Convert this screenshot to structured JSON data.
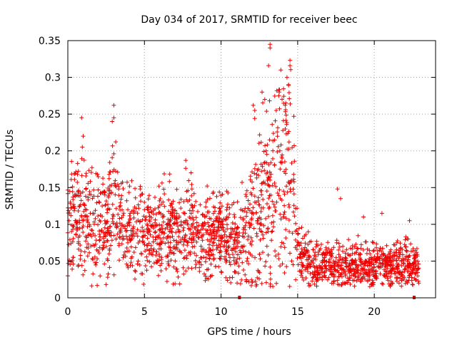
{
  "chart_data": {
    "type": "scatter",
    "title": "Day 034 of 2017, SRMTID for receiver beec",
    "xlabel": "GPS time / hours",
    "ylabel": "SRMTID / TECUs",
    "xlim": [
      0,
      24
    ],
    "ylim": [
      0,
      0.35
    ],
    "xticks": [
      0,
      5,
      10,
      15,
      20
    ],
    "yticks": [
      0,
      0.05,
      0.1,
      0.15,
      0.2,
      0.25,
      0.3,
      0.35
    ],
    "xtick_labels": [
      "0",
      "5",
      "10",
      "15",
      "20"
    ],
    "ytick_labels": [
      "0",
      "0.05",
      "0.1",
      "0.15",
      "0.2",
      "0.25",
      "0.3",
      "0.35"
    ],
    "grid": true,
    "marker": "+",
    "color": "#ee0000",
    "zero_markers_x": [
      11.2,
      22.6
    ],
    "series": [
      {
        "name": "SRMTID",
        "profile_hours": [
          0,
          0.5,
          1,
          1.5,
          2,
          2.5,
          3,
          3.5,
          4,
          5,
          6,
          7,
          8,
          9,
          10,
          11,
          11.5,
          12,
          12.5,
          13,
          13.5,
          14,
          14.5,
          14.8,
          15,
          15.5,
          16,
          17,
          18,
          19,
          20,
          21,
          22,
          22.9
        ],
        "profile_mean_tecu": [
          0.1,
          0.12,
          0.11,
          0.09,
          0.1,
          0.1,
          0.12,
          0.1,
          0.09,
          0.085,
          0.09,
          0.09,
          0.095,
          0.08,
          0.09,
          0.075,
          0.08,
          0.11,
          0.12,
          0.14,
          0.16,
          0.17,
          0.18,
          0.15,
          0.065,
          0.05,
          0.045,
          0.045,
          0.045,
          0.045,
          0.045,
          0.045,
          0.045,
          0.04
        ],
        "profile_spread_tecu": [
          0.035,
          0.045,
          0.04,
          0.035,
          0.035,
          0.035,
          0.045,
          0.035,
          0.03,
          0.03,
          0.03,
          0.03,
          0.03,
          0.03,
          0.03,
          0.025,
          0.035,
          0.055,
          0.06,
          0.07,
          0.07,
          0.07,
          0.07,
          0.05,
          0.02,
          0.015,
          0.015,
          0.015,
          0.015,
          0.015,
          0.015,
          0.015,
          0.015,
          0.012
        ],
        "sample_count": 2200,
        "extra_points": [
          [
            0.9,
            0.245
          ],
          [
            1.0,
            0.22
          ],
          [
            3.0,
            0.262
          ],
          [
            3.0,
            0.245
          ],
          [
            2.9,
            0.24
          ],
          [
            7.7,
            0.187
          ],
          [
            13.2,
            0.345
          ],
          [
            13.2,
            0.34
          ],
          [
            13.1,
            0.316
          ],
          [
            13.9,
            0.31
          ],
          [
            14.5,
            0.323
          ],
          [
            14.5,
            0.316
          ],
          [
            14.3,
            0.3
          ],
          [
            12.1,
            0.262
          ],
          [
            12.2,
            0.255
          ],
          [
            13.8,
            0.28
          ],
          [
            14.4,
            0.29
          ],
          [
            13.6,
            0.255
          ],
          [
            17.6,
            0.148
          ],
          [
            17.8,
            0.135
          ],
          [
            20.5,
            0.115
          ],
          [
            19.3,
            0.11
          ],
          [
            22.3,
            0.105
          ],
          [
            22.2,
            0.08
          ],
          [
            0.0,
            0.03
          ],
          [
            22.9,
            0.02
          ],
          [
            2.5,
            0.018
          ],
          [
            2.6,
            0.028
          ],
          [
            15.3,
            0.028
          ]
        ]
      }
    ]
  }
}
